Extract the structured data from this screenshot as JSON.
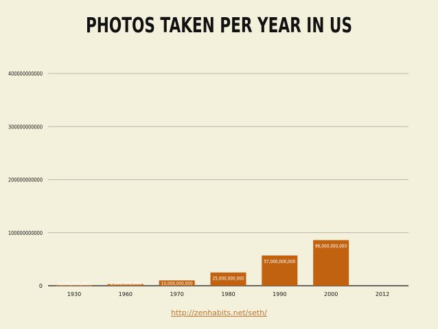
{
  "chart_data": {
    "type": "bar",
    "title": "PHOTOS TAKEN PER YEAR IN US",
    "xlabel": "",
    "ylabel": "",
    "categories": [
      "1930",
      "1960",
      "1970",
      "1980",
      "1990",
      "2000",
      "2012"
    ],
    "values": [
      1000000000,
      3000000000,
      10000000000,
      25000000000,
      57000000000,
      86000000000,
      0
    ],
    "data_labels": [
      "1,000,000,000",
      "3,000,000,000",
      "10,000,000,000",
      "25,000,000,000",
      "57,000,000,000",
      "86,000,000,000",
      ""
    ],
    "ylim": [
      0,
      400000000000
    ],
    "yticks": [
      0,
      100000000000,
      200000000000,
      300000000000,
      400000000000
    ],
    "ytick_labels": [
      "0",
      "100000000000",
      "200000000000",
      "300000000000",
      "400000000000"
    ],
    "grid": true,
    "bar_color": "#c0620f",
    "grid_color": "#a8a497"
  },
  "source_link": "http://zenhabits.net/seth/"
}
